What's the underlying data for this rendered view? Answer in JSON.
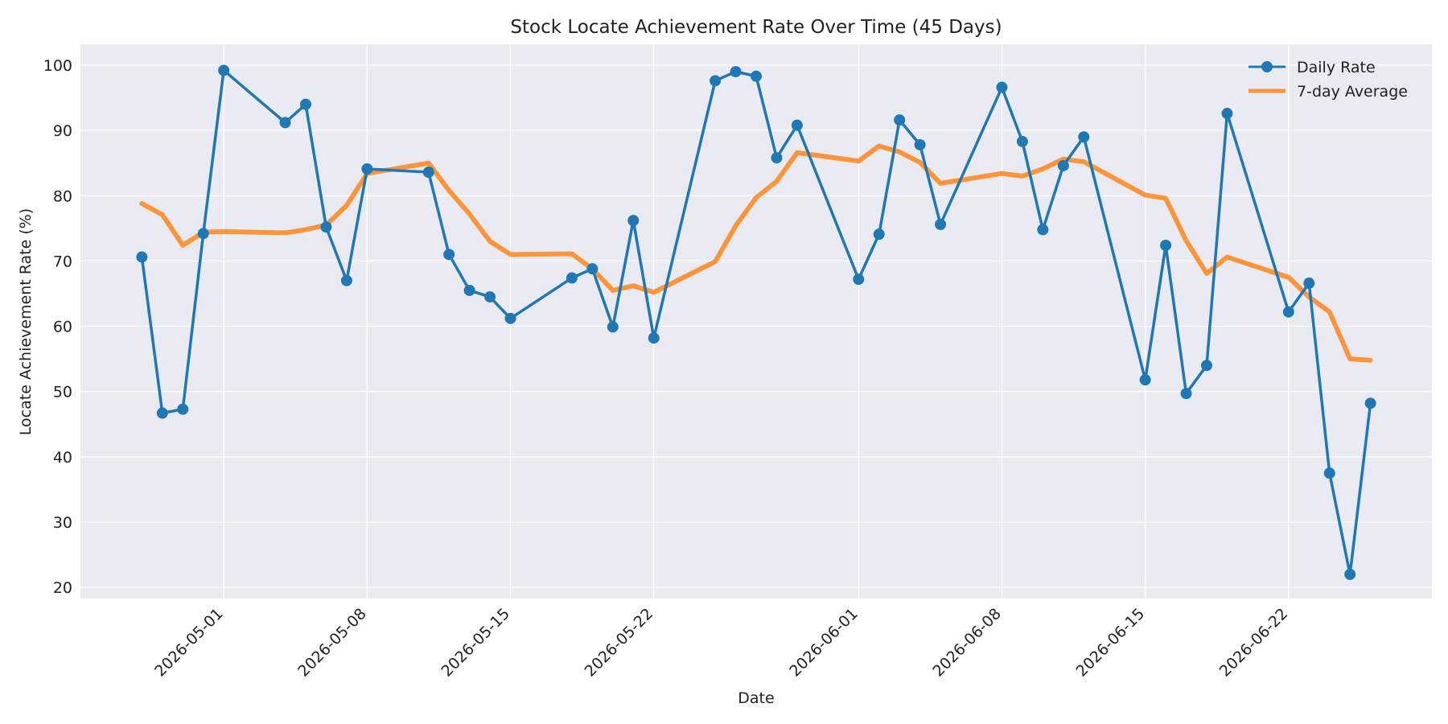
{
  "chart_data": {
    "type": "line",
    "title": "Stock Locate Achievement Rate Over Time (45 Days)",
    "xlabel": "Date",
    "ylabel": "Locate Achievement Rate (%)",
    "x_range": [
      "2026-04-24",
      "2026-06-29"
    ],
    "ylim": [
      18.3,
      103.2
    ],
    "yticks": [
      20,
      30,
      40,
      50,
      60,
      70,
      80,
      90,
      100
    ],
    "xticks": [
      "2026-05-01",
      "2026-05-08",
      "2026-05-15",
      "2026-05-22",
      "2026-06-01",
      "2026-06-08",
      "2026-06-15",
      "2026-06-22"
    ],
    "grid": true,
    "legend_position": "top-right",
    "colors": {
      "daily": "#1f77b4",
      "average": "#ff7f0e",
      "background": "#eaeaf2",
      "grid": "#ffffff"
    },
    "x": [
      "2026-04-27",
      "2026-04-28",
      "2026-04-29",
      "2026-04-30",
      "2026-05-01",
      "2026-05-04",
      "2026-05-05",
      "2026-05-06",
      "2026-05-07",
      "2026-05-08",
      "2026-05-11",
      "2026-05-12",
      "2026-05-13",
      "2026-05-14",
      "2026-05-15",
      "2026-05-18",
      "2026-05-19",
      "2026-05-20",
      "2026-05-21",
      "2026-05-22",
      "2026-05-25",
      "2026-05-26",
      "2026-05-27",
      "2026-05-28",
      "2026-05-29",
      "2026-06-01",
      "2026-06-02",
      "2026-06-03",
      "2026-06-04",
      "2026-06-05",
      "2026-06-08",
      "2026-06-09",
      "2026-06-10",
      "2026-06-11",
      "2026-06-12",
      "2026-06-15",
      "2026-06-16",
      "2026-06-17",
      "2026-06-18",
      "2026-06-19",
      "2026-06-22",
      "2026-06-23",
      "2026-06-24",
      "2026-06-25",
      "2026-06-26"
    ],
    "series": [
      {
        "name": "Daily Rate",
        "values": [
          70.6,
          46.7,
          47.3,
          74.2,
          99.2,
          91.2,
          94.0,
          75.2,
          67.0,
          84.1,
          83.6,
          71.0,
          65.5,
          64.5,
          61.2,
          67.4,
          68.8,
          59.9,
          76.2,
          58.2,
          97.6,
          99.0,
          98.3,
          85.8,
          90.8,
          67.2,
          74.1,
          91.6,
          87.8,
          75.6,
          96.6,
          88.3,
          74.8,
          84.6,
          89.0,
          51.8,
          72.4,
          49.7,
          54.0,
          92.6,
          62.2,
          66.6,
          37.5,
          22.0,
          48.2
        ]
      },
      {
        "name": "7-day Average",
        "values": [
          78.8,
          77.1,
          72.4,
          74.4,
          74.5,
          74.3,
          74.8,
          75.5,
          78.5,
          83.4,
          85.0,
          80.8,
          77.2,
          73.0,
          71.0,
          71.1,
          68.8,
          65.5,
          66.2,
          65.2,
          69.9,
          75.4,
          79.7,
          82.2,
          86.6,
          85.3,
          87.6,
          86.7,
          85.1,
          81.9,
          83.4,
          83.0,
          84.1,
          85.6,
          85.2,
          80.1,
          79.6,
          73.1,
          68.1,
          70.6,
          67.5,
          64.5,
          62.2,
          55.0,
          54.8
        ]
      }
    ]
  }
}
